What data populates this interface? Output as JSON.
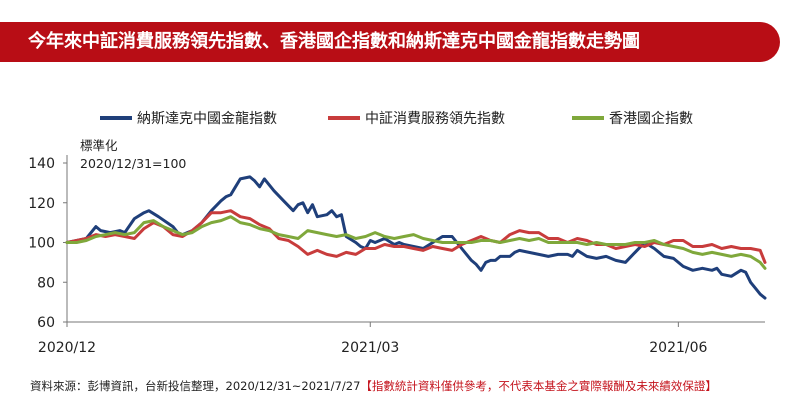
{
  "title": "今年來中証消費服務領先指數、香港國企指數和納斯達克中國金龍指數走勢圖",
  "footer": {
    "source": "資料來源：彭博資訊，台新投信整理，2020/12/31~2021/7/27",
    "note": "【指數統計資料僅供參考，不代表本基金之實際報酬及未來績效保證】"
  },
  "chart_data": {
    "type": "line",
    "title": "",
    "ylabel_line1": "標準化",
    "ylabel_line2": "2020/12/31=100",
    "ylim": [
      60,
      140
    ],
    "yticks": [
      60,
      80,
      100,
      120,
      140
    ],
    "xlim": [
      0,
      145
    ],
    "xticks": [
      {
        "label": "2020/12",
        "x": 0
      },
      {
        "label": "2021/03",
        "x": 63
      },
      {
        "label": "2021/06",
        "x": 127
      }
    ],
    "grid": false,
    "legend_position": "top",
    "series": [
      {
        "name": "納斯達克中國金龍指數",
        "color": "#1f3f7a",
        "x": [
          0,
          2,
          4,
          6,
          7,
          9,
          11,
          12,
          14,
          16,
          17,
          19,
          22,
          23,
          24,
          26,
          28,
          30,
          32,
          33,
          34,
          35,
          36,
          38,
          39,
          40,
          41,
          43,
          45,
          47,
          48,
          49,
          50,
          51,
          52,
          54,
          55,
          56,
          57,
          58,
          60,
          61,
          62,
          63,
          64,
          66,
          68,
          69,
          70,
          72,
          74,
          76,
          78,
          80,
          82,
          84,
          85,
          86,
          87,
          88,
          89,
          90,
          92,
          93,
          94,
          96,
          98,
          100,
          102,
          104,
          105,
          106,
          108,
          110,
          112,
          114,
          116,
          118,
          120,
          122,
          124,
          126,
          128,
          130,
          132,
          134,
          135,
          136,
          138,
          140,
          141,
          142,
          143,
          144,
          145
        ],
        "y": [
          100,
          101,
          102,
          108,
          106,
          105,
          106,
          105,
          112,
          115,
          116,
          113,
          108,
          105,
          104,
          106,
          110,
          116,
          121,
          123,
          124,
          128,
          132,
          133,
          131,
          128,
          132,
          126,
          121,
          116,
          119,
          120,
          115,
          119,
          113,
          114,
          116,
          113,
          114,
          103,
          100,
          98,
          97,
          101,
          100,
          102,
          99,
          100,
          99,
          98,
          97,
          100,
          103,
          103,
          97,
          91,
          89,
          86,
          90,
          91,
          91,
          93,
          93,
          95,
          96,
          95,
          94,
          93,
          94,
          94,
          93,
          96,
          93,
          92,
          93,
          91,
          90,
          95,
          100,
          97,
          93,
          92,
          88,
          86,
          87,
          86,
          87,
          84,
          83,
          86,
          85,
          80,
          77,
          74,
          72
        ]
      },
      {
        "name": "中証消費服務領先指數",
        "color": "#c83c3c",
        "x": [
          0,
          2,
          4,
          6,
          8,
          10,
          12,
          14,
          16,
          18,
          20,
          22,
          24,
          26,
          28,
          30,
          32,
          34,
          36,
          38,
          40,
          42,
          44,
          46,
          48,
          50,
          52,
          54,
          56,
          58,
          60,
          62,
          64,
          66,
          68,
          70,
          72,
          74,
          76,
          78,
          80,
          82,
          84,
          86,
          88,
          90,
          92,
          94,
          96,
          98,
          100,
          102,
          104,
          106,
          108,
          110,
          112,
          114,
          116,
          118,
          120,
          122,
          124,
          126,
          128,
          130,
          132,
          134,
          136,
          138,
          140,
          142,
          144,
          145
        ],
        "y": [
          100,
          101,
          102,
          104,
          103,
          104,
          103,
          102,
          107,
          110,
          108,
          104,
          103,
          106,
          110,
          115,
          115,
          116,
          113,
          112,
          109,
          107,
          102,
          101,
          98,
          94,
          96,
          94,
          93,
          95,
          94,
          97,
          97,
          99,
          98,
          98,
          97,
          96,
          98,
          97,
          96,
          99,
          101,
          103,
          101,
          100,
          104,
          106,
          105,
          105,
          102,
          102,
          100,
          102,
          101,
          99,
          99,
          97,
          98,
          99,
          98,
          100,
          99,
          101,
          101,
          98,
          98,
          99,
          97,
          98,
          97,
          97,
          96,
          90
        ]
      },
      {
        "name": "香港國企指數",
        "color": "#7fa83b",
        "x": [
          0,
          2,
          4,
          6,
          8,
          10,
          12,
          14,
          16,
          18,
          20,
          22,
          24,
          26,
          28,
          30,
          32,
          34,
          36,
          38,
          40,
          42,
          44,
          46,
          48,
          50,
          52,
          54,
          56,
          58,
          60,
          62,
          64,
          66,
          68,
          70,
          72,
          74,
          76,
          78,
          80,
          82,
          84,
          86,
          88,
          90,
          92,
          94,
          96,
          98,
          100,
          102,
          104,
          106,
          108,
          110,
          112,
          114,
          116,
          118,
          120,
          122,
          124,
          126,
          128,
          130,
          132,
          134,
          136,
          138,
          140,
          142,
          144,
          145
        ],
        "y": [
          100,
          100,
          101,
          103,
          104,
          105,
          104,
          105,
          110,
          111,
          108,
          106,
          104,
          105,
          108,
          110,
          111,
          113,
          110,
          109,
          107,
          106,
          104,
          103,
          102,
          106,
          105,
          104,
          103,
          104,
          102,
          103,
          105,
          103,
          102,
          103,
          104,
          102,
          101,
          100,
          100,
          100,
          100,
          101,
          101,
          100,
          101,
          102,
          101,
          102,
          100,
          100,
          100,
          100,
          99,
          100,
          99,
          99,
          99,
          100,
          100,
          101,
          99,
          98,
          97,
          95,
          94,
          95,
          94,
          93,
          94,
          93,
          90,
          87
        ]
      }
    ]
  }
}
